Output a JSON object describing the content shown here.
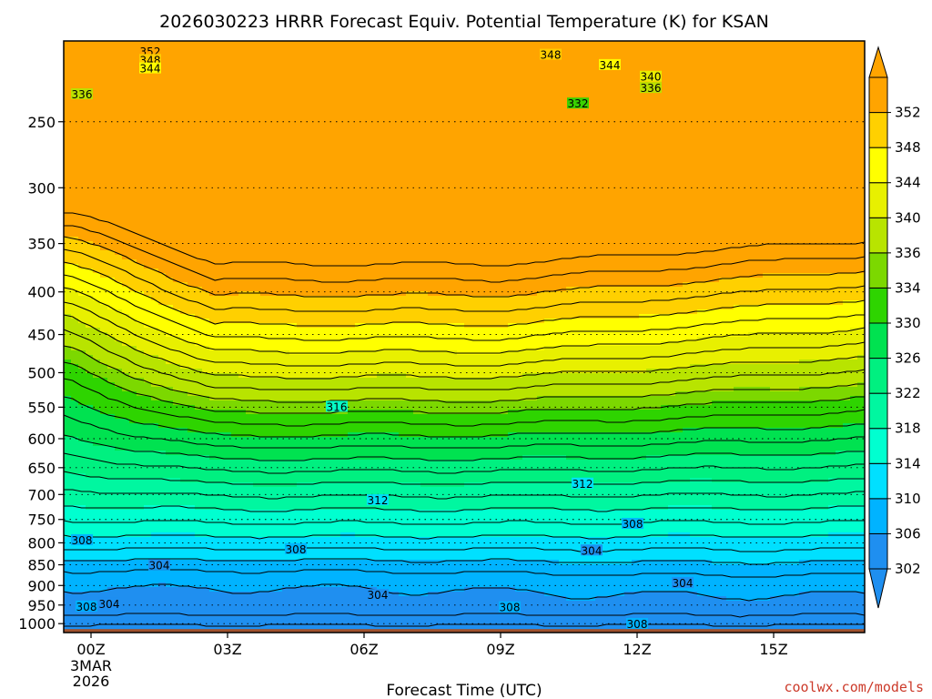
{
  "chart_data": {
    "type": "contour",
    "title": "2026030223 HRRR Forecast Equiv. Potential Temperature (K) for KSAN",
    "xlabel": "Forecast Time (UTC)",
    "x_ticks": [
      "00Z",
      "03Z",
      "06Z",
      "09Z",
      "12Z",
      "15Z"
    ],
    "x_tick_hours": [
      0,
      3,
      6,
      9,
      12,
      15
    ],
    "date_label": [
      "3MAR",
      "2026"
    ],
    "xlim_hours": [
      -0.6,
      17
    ],
    "y_ticks": [
      250,
      300,
      350,
      400,
      450,
      500,
      550,
      600,
      650,
      700,
      750,
      800,
      850,
      900,
      950,
      1000
    ],
    "ylim_hpa": [
      200,
      1025
    ],
    "yscale": "log",
    "grid": "dotted horizontal lines at pressure levels",
    "colorbar": {
      "levels": [
        302,
        306,
        310,
        314,
        318,
        322,
        326,
        330,
        334,
        336,
        340,
        344,
        348,
        352
      ],
      "colors": [
        "#1f8ff0",
        "#00b3ff",
        "#00e0ff",
        "#00ffd0",
        "#00f7a0",
        "#00f080",
        "#00e250",
        "#2ed400",
        "#7cd800",
        "#b8e400",
        "#e8f000",
        "#ffff00",
        "#ffd000",
        "#ffa400"
      ]
    },
    "contour_labels": [
      {
        "text": "352",
        "hour": 1.3,
        "hpa": 206
      },
      {
        "text": "348",
        "hour": 1.3,
        "hpa": 211
      },
      {
        "text": "344",
        "hour": 1.3,
        "hpa": 216
      },
      {
        "text": "336",
        "hour": -0.2,
        "hpa": 232
      },
      {
        "text": "348",
        "hour": 10.1,
        "hpa": 208
      },
      {
        "text": "344",
        "hour": 11.4,
        "hpa": 214
      },
      {
        "text": "340",
        "hour": 12.3,
        "hpa": 221
      },
      {
        "text": "336",
        "hour": 12.3,
        "hpa": 228
      },
      {
        "text": "332",
        "hour": 10.7,
        "hpa": 238
      },
      {
        "text": "316",
        "hour": 5.4,
        "hpa": 550
      },
      {
        "text": "312",
        "hour": 10.8,
        "hpa": 680
      },
      {
        "text": "312",
        "hour": 6.3,
        "hpa": 712
      },
      {
        "text": "308",
        "hour": 11.9,
        "hpa": 760
      },
      {
        "text": "308",
        "hour": -0.2,
        "hpa": 795
      },
      {
        "text": "308",
        "hour": 4.5,
        "hpa": 815
      },
      {
        "text": "304",
        "hour": 11.0,
        "hpa": 818
      },
      {
        "text": "304",
        "hour": 1.5,
        "hpa": 852
      },
      {
        "text": "304",
        "hour": 13.0,
        "hpa": 895
      },
      {
        "text": "304",
        "hour": 6.3,
        "hpa": 925
      },
      {
        "text": "308",
        "hour": -0.1,
        "hpa": 955
      },
      {
        "text": "304",
        "hour": 0.4,
        "hpa": 948
      },
      {
        "text": "308",
        "hour": 9.2,
        "hpa": 957
      },
      {
        "text": "308",
        "hour": 12.0,
        "hpa": 1002
      }
    ],
    "surface_color": "#a0522d"
  },
  "footer": {
    "credit": "coolwx.com/models"
  }
}
